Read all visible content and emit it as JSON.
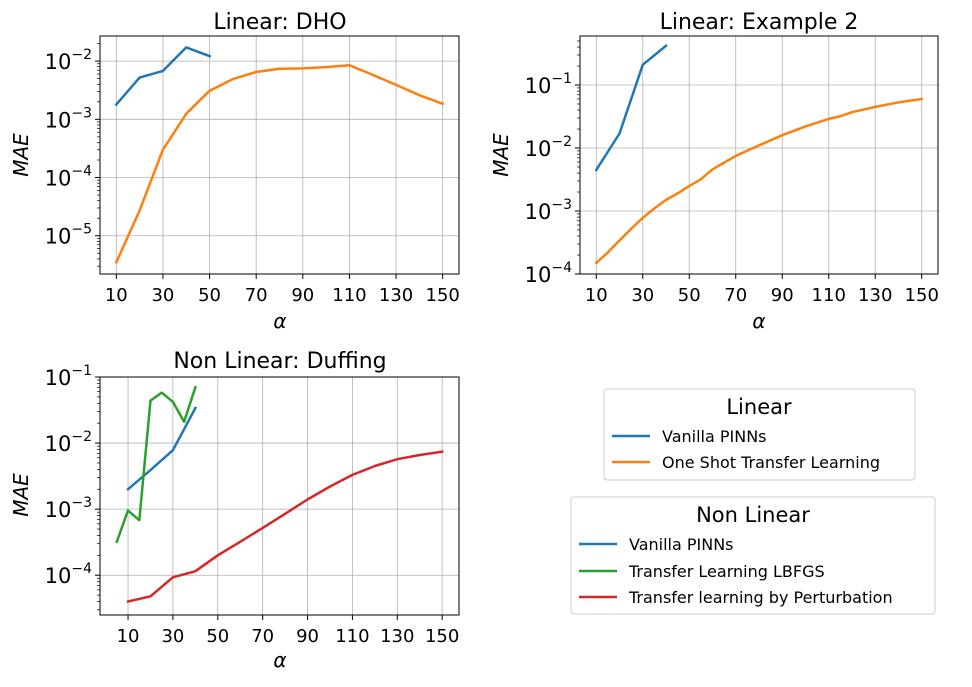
{
  "chart_data": [
    {
      "type": "line",
      "title": "Linear: DHO",
      "xlabel": "α",
      "ylabel": "MAE",
      "xlim": [
        3,
        157
      ],
      "ylim": [
        2.2e-06,
        0.027
      ],
      "xscale": "linear",
      "yscale": "log",
      "xticks": [
        10,
        30,
        50,
        70,
        90,
        110,
        130,
        150
      ],
      "xticklabels": [
        "10",
        "30",
        "50",
        "70",
        "90",
        "110",
        "130",
        "150"
      ],
      "yticks": [
        1e-05,
        0.0001,
        0.001,
        0.01
      ],
      "yticklabels": [
        {
          "base": "10",
          "exp": "−5"
        },
        {
          "base": "10",
          "exp": "−4"
        },
        {
          "base": "10",
          "exp": "−3"
        },
        {
          "base": "10",
          "exp": "−2"
        }
      ],
      "grid": true,
      "series": [
        {
          "name": "Vanilla PINNs",
          "color": "#1f77b4",
          "x": [
            10,
            20,
            30,
            40,
            50
          ],
          "y": [
            0.0018,
            0.0052,
            0.0068,
            0.0172,
            0.0122
          ]
        },
        {
          "name": "One Shot Transfer Learning",
          "color": "#ff7f0e",
          "x": [
            10,
            20,
            30,
            40,
            50,
            60,
            70,
            80,
            90,
            100,
            110,
            120,
            130,
            140,
            150
          ],
          "y": [
            3.5e-06,
            2.7e-05,
            0.0003,
            0.00125,
            0.0031,
            0.0049,
            0.0065,
            0.0074,
            0.0075,
            0.0079,
            0.0085,
            0.0058,
            0.0039,
            0.0026,
            0.00185
          ]
        }
      ]
    },
    {
      "type": "line",
      "title": "Linear: Example 2",
      "xlabel": "α",
      "ylabel": "MAE",
      "xlim": [
        3,
        157
      ],
      "ylim": [
        0.0001,
        0.6
      ],
      "xscale": "linear",
      "yscale": "log",
      "xticks": [
        10,
        30,
        50,
        70,
        90,
        110,
        130,
        150
      ],
      "xticklabels": [
        "10",
        "30",
        "50",
        "70",
        "90",
        "110",
        "130",
        "150"
      ],
      "yticks": [
        0.0001,
        0.001,
        0.01,
        0.1
      ],
      "yticklabels": [
        {
          "base": "10",
          "exp": "−4"
        },
        {
          "base": "10",
          "exp": "−3"
        },
        {
          "base": "10",
          "exp": "−2"
        },
        {
          "base": "10",
          "exp": "−1"
        }
      ],
      "grid": true,
      "series": [
        {
          "name": "Vanilla PINNs",
          "color": "#1f77b4",
          "x": [
            10,
            20,
            30,
            40
          ],
          "y": [
            0.0045,
            0.017,
            0.21,
            0.42
          ]
        },
        {
          "name": "One Shot Transfer Learning",
          "color": "#ff7f0e",
          "x": [
            10,
            15,
            20,
            25,
            30,
            35,
            40,
            45,
            50,
            55,
            60,
            70,
            80,
            90,
            100,
            110,
            115,
            120,
            130,
            140,
            150
          ],
          "y": [
            0.00015,
            0.00022,
            0.00034,
            0.00052,
            0.00078,
            0.0011,
            0.0015,
            0.0019,
            0.0025,
            0.0032,
            0.0046,
            0.0075,
            0.011,
            0.016,
            0.022,
            0.029,
            0.032,
            0.037,
            0.045,
            0.053,
            0.06
          ]
        }
      ]
    },
    {
      "type": "line",
      "title": "Non Linear: Duffing",
      "xlabel": "α",
      "ylabel": "MAE",
      "xlim": [
        -2.5,
        157.5
      ],
      "ylim": [
        2.5e-05,
        0.1
      ],
      "xscale": "linear",
      "yscale": "log",
      "xticks": [
        10,
        30,
        50,
        70,
        90,
        110,
        130,
        150
      ],
      "xticklabels": [
        "10",
        "30",
        "50",
        "70",
        "90",
        "110",
        "130",
        "150"
      ],
      "yticks": [
        0.0001,
        0.001,
        0.01,
        0.1
      ],
      "yticklabels": [
        {
          "base": "10",
          "exp": "−4"
        },
        {
          "base": "10",
          "exp": "−3"
        },
        {
          "base": "10",
          "exp": "−2"
        },
        {
          "base": "10",
          "exp": "−1"
        }
      ],
      "grid": true,
      "series": [
        {
          "name": "Vanilla PINNs",
          "color": "#1f77b4",
          "x": [
            10,
            20,
            30,
            40
          ],
          "y": [
            0.002,
            0.0039,
            0.0078,
            0.034
          ]
        },
        {
          "name": "Transfer Learning LBFGS",
          "color": "#2ca02c",
          "x": [
            5,
            10,
            15,
            20,
            25,
            30,
            35,
            40
          ],
          "y": [
            0.00032,
            0.00095,
            0.00068,
            0.044,
            0.058,
            0.042,
            0.021,
            0.07
          ]
        },
        {
          "name": "Transfer learning by Perturbation",
          "color": "#d62728",
          "x": [
            10,
            20,
            30,
            40,
            50,
            60,
            70,
            80,
            90,
            100,
            110,
            120,
            130,
            140,
            150
          ],
          "y": [
            4e-05,
            4.8e-05,
            9.3e-05,
            0.000115,
            0.0002,
            0.00032,
            0.00052,
            0.00085,
            0.0014,
            0.0022,
            0.0033,
            0.0045,
            0.0057,
            0.0066,
            0.0074
          ]
        }
      ]
    }
  ],
  "legends": [
    {
      "title": "Linear",
      "entries": [
        {
          "label": "Vanilla PINNs",
          "color": "#1f77b4"
        },
        {
          "label": "One Shot Transfer Learning",
          "color": "#ff7f0e"
        }
      ]
    },
    {
      "title": "Non Linear",
      "entries": [
        {
          "label": "Vanilla PINNs",
          "color": "#1f77b4"
        },
        {
          "label": "Transfer Learning LBFGS",
          "color": "#2ca02c"
        },
        {
          "label": "Transfer learning by Perturbation",
          "color": "#d62728"
        }
      ]
    }
  ]
}
